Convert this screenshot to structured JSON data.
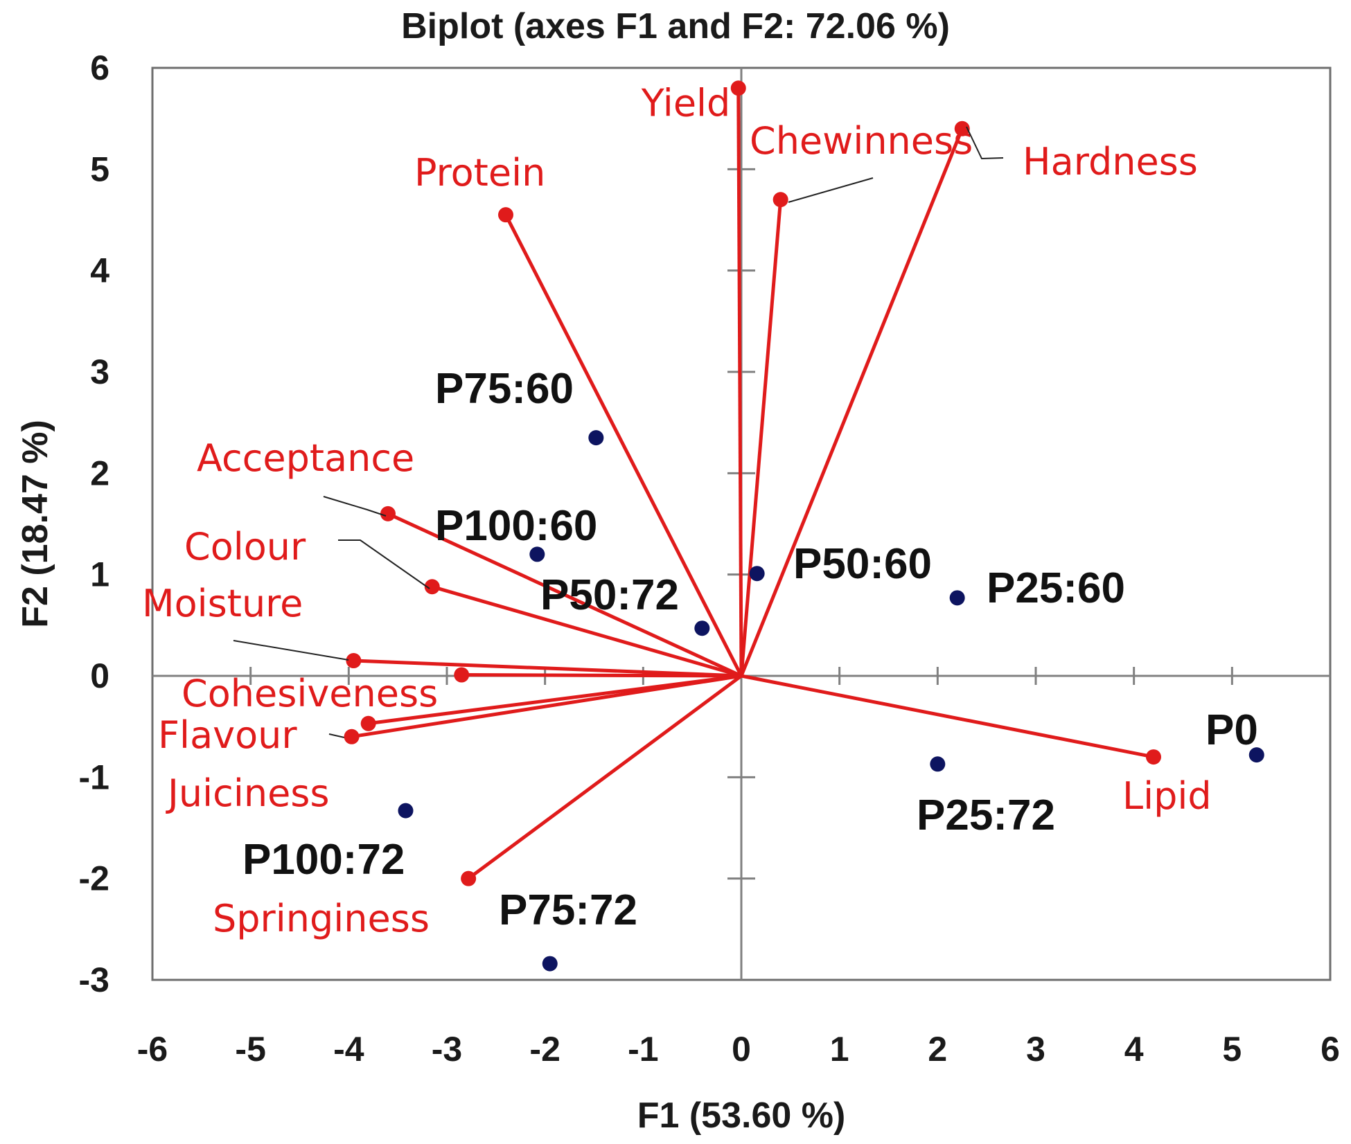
{
  "colors": {
    "variable": "#e01b1b",
    "observation": "#0d1460",
    "obs_label": "#111111",
    "axis": "#808080",
    "frame": "#6e6e6e",
    "leader": "#222222"
  },
  "chart_data": {
    "type": "scatter",
    "subtype": "biplot",
    "title": "Biplot (axes F1 and F2: 72.06 %)",
    "xlabel": "F1 (53.60 %)",
    "ylabel": "F2 (18.47 %)",
    "xlim": [
      -6,
      6
    ],
    "ylim": [
      -3,
      6
    ],
    "x_ticks": [
      -6,
      -5,
      -4,
      -3,
      -2,
      -1,
      0,
      1,
      2,
      3,
      4,
      5,
      6
    ],
    "y_ticks": [
      -3,
      -2,
      -1,
      0,
      1,
      2,
      3,
      4,
      5,
      6
    ],
    "grid": false,
    "legend": "none",
    "variables": [
      {
        "name": "Yield",
        "x": -0.03,
        "y": 5.8
      },
      {
        "name": "Chewinness",
        "x": 0.4,
        "y": 4.7
      },
      {
        "name": "Hardness",
        "x": 2.25,
        "y": 5.4
      },
      {
        "name": "Protein",
        "x": -2.4,
        "y": 4.55
      },
      {
        "name": "Acceptance",
        "x": -3.6,
        "y": 1.6
      },
      {
        "name": "Colour",
        "x": -3.15,
        "y": 0.88
      },
      {
        "name": "Moisture",
        "x": -3.95,
        "y": 0.15
      },
      {
        "name": "Cohesiveness",
        "x": -2.85,
        "y": 0.01
      },
      {
        "name": "Flavour",
        "x": -3.8,
        "y": -0.47
      },
      {
        "name": "Juiciness",
        "x": -3.97,
        "y": -0.6
      },
      {
        "name": "Springiness",
        "x": -2.78,
        "y": -2.0
      },
      {
        "name": "Lipid",
        "x": 4.2,
        "y": -0.8
      }
    ],
    "observations": [
      {
        "name": "P75:60",
        "x": -1.48,
        "y": 2.35
      },
      {
        "name": "P100:60",
        "x": -2.08,
        "y": 1.2
      },
      {
        "name": "P50:72",
        "x": -0.4,
        "y": 0.47
      },
      {
        "name": "P50:60",
        "x": 0.16,
        "y": 1.01
      },
      {
        "name": "P25:60",
        "x": 2.2,
        "y": 0.77
      },
      {
        "name": "P0",
        "x": 5.25,
        "y": -0.78
      },
      {
        "name": "P25:72",
        "x": 2.0,
        "y": -0.87
      },
      {
        "name": "P100:72",
        "x": -3.42,
        "y": -1.33
      },
      {
        "name": "P75:72",
        "x": -1.95,
        "y": -2.84
      }
    ]
  }
}
